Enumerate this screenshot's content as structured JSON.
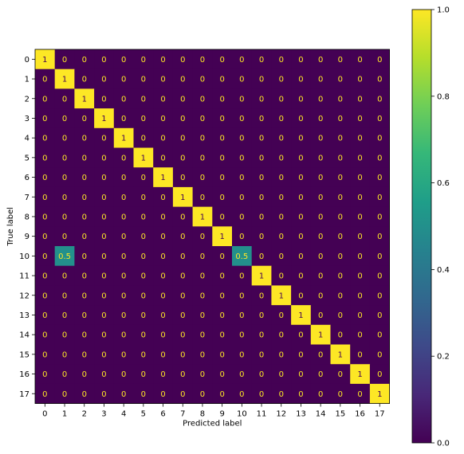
{
  "chart_data": {
    "type": "heatmap",
    "title": "",
    "xlabel": "Predicted label",
    "ylabel": "True label",
    "x_ticks": [
      "0",
      "1",
      "2",
      "3",
      "4",
      "5",
      "6",
      "7",
      "8",
      "9",
      "10",
      "11",
      "12",
      "13",
      "14",
      "15",
      "16",
      "17"
    ],
    "y_ticks": [
      "0",
      "1",
      "2",
      "3",
      "4",
      "5",
      "6",
      "7",
      "8",
      "9",
      "10",
      "11",
      "12",
      "13",
      "14",
      "15",
      "16",
      "17"
    ],
    "matrix": [
      [
        1,
        0,
        0,
        0,
        0,
        0,
        0,
        0,
        0,
        0,
        0,
        0,
        0,
        0,
        0,
        0,
        0,
        0
      ],
      [
        0,
        1,
        0,
        0,
        0,
        0,
        0,
        0,
        0,
        0,
        0,
        0,
        0,
        0,
        0,
        0,
        0,
        0
      ],
      [
        0,
        0,
        1,
        0,
        0,
        0,
        0,
        0,
        0,
        0,
        0,
        0,
        0,
        0,
        0,
        0,
        0,
        0
      ],
      [
        0,
        0,
        0,
        1,
        0,
        0,
        0,
        0,
        0,
        0,
        0,
        0,
        0,
        0,
        0,
        0,
        0,
        0
      ],
      [
        0,
        0,
        0,
        0,
        1,
        0,
        0,
        0,
        0,
        0,
        0,
        0,
        0,
        0,
        0,
        0,
        0,
        0
      ],
      [
        0,
        0,
        0,
        0,
        0,
        1,
        0,
        0,
        0,
        0,
        0,
        0,
        0,
        0,
        0,
        0,
        0,
        0
      ],
      [
        0,
        0,
        0,
        0,
        0,
        0,
        1,
        0,
        0,
        0,
        0,
        0,
        0,
        0,
        0,
        0,
        0,
        0
      ],
      [
        0,
        0,
        0,
        0,
        0,
        0,
        0,
        1,
        0,
        0,
        0,
        0,
        0,
        0,
        0,
        0,
        0,
        0
      ],
      [
        0,
        0,
        0,
        0,
        0,
        0,
        0,
        0,
        1,
        0,
        0,
        0,
        0,
        0,
        0,
        0,
        0,
        0
      ],
      [
        0,
        0,
        0,
        0,
        0,
        0,
        0,
        0,
        0,
        1,
        0,
        0,
        0,
        0,
        0,
        0,
        0,
        0
      ],
      [
        0,
        0.5,
        0,
        0,
        0,
        0,
        0,
        0,
        0,
        0,
        0.5,
        0,
        0,
        0,
        0,
        0,
        0,
        0
      ],
      [
        0,
        0,
        0,
        0,
        0,
        0,
        0,
        0,
        0,
        0,
        0,
        1,
        0,
        0,
        0,
        0,
        0,
        0
      ],
      [
        0,
        0,
        0,
        0,
        0,
        0,
        0,
        0,
        0,
        0,
        0,
        0,
        1,
        0,
        0,
        0,
        0,
        0
      ],
      [
        0,
        0,
        0,
        0,
        0,
        0,
        0,
        0,
        0,
        0,
        0,
        0,
        0,
        1,
        0,
        0,
        0,
        0
      ],
      [
        0,
        0,
        0,
        0,
        0,
        0,
        0,
        0,
        0,
        0,
        0,
        0,
        0,
        0,
        1,
        0,
        0,
        0
      ],
      [
        0,
        0,
        0,
        0,
        0,
        0,
        0,
        0,
        0,
        0,
        0,
        0,
        0,
        0,
        0,
        1,
        0,
        0
      ],
      [
        0,
        0,
        0,
        0,
        0,
        0,
        0,
        0,
        0,
        0,
        0,
        0,
        0,
        0,
        0,
        0,
        1,
        0
      ],
      [
        0,
        0,
        0,
        0,
        0,
        0,
        0,
        0,
        0,
        0,
        0,
        0,
        0,
        0,
        0,
        0,
        0,
        1
      ]
    ],
    "colorbar": {
      "range": [
        0.0,
        1.0
      ],
      "ticks": [
        "0.0",
        "0.2",
        "0.4",
        "0.6",
        "0.8",
        "1.0"
      ],
      "colormap": "viridis",
      "colors": [
        "#440154",
        "#482878",
        "#3e4989",
        "#31688e",
        "#26828e",
        "#1f9e89",
        "#35b779",
        "#6ece58",
        "#b5de2b",
        "#fde725"
      ]
    },
    "label_color_low": "#fde725",
    "label_color_high": "#440154"
  }
}
